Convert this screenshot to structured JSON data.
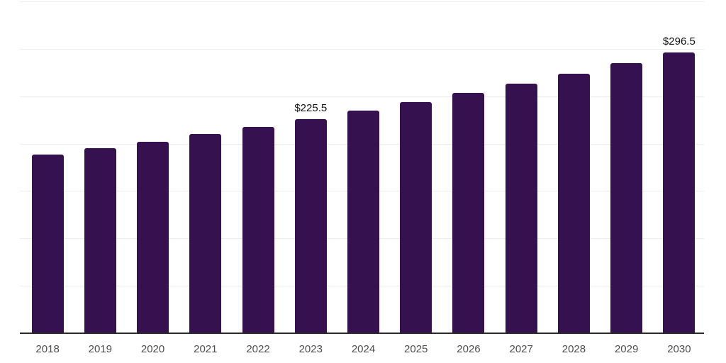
{
  "chart_data": {
    "type": "bar",
    "title": "",
    "xlabel": "",
    "ylabel": "",
    "categories": [
      "2018",
      "2019",
      "2020",
      "2021",
      "2022",
      "2023",
      "2024",
      "2025",
      "2026",
      "2027",
      "2028",
      "2029",
      "2030"
    ],
    "values": [
      188.2,
      195.3,
      202.1,
      209.9,
      217.5,
      225.5,
      234.8,
      243.8,
      253.5,
      263.5,
      274.0,
      285.0,
      296.5
    ],
    "data_labels": {
      "2023": "$225.5",
      "2030": "$296.5"
    },
    "ylim": [
      0,
      350
    ],
    "grid_step": 50,
    "grid": "horizontal-only",
    "legend": "none",
    "y_tick_labels_shown": false,
    "colors": {
      "bar": "#361150",
      "gridline": "#ededed",
      "axis_line": "#2b2b2b",
      "x_tick_label": "#4d4d4d",
      "data_label": "#111111",
      "background": "#ffffff"
    }
  }
}
